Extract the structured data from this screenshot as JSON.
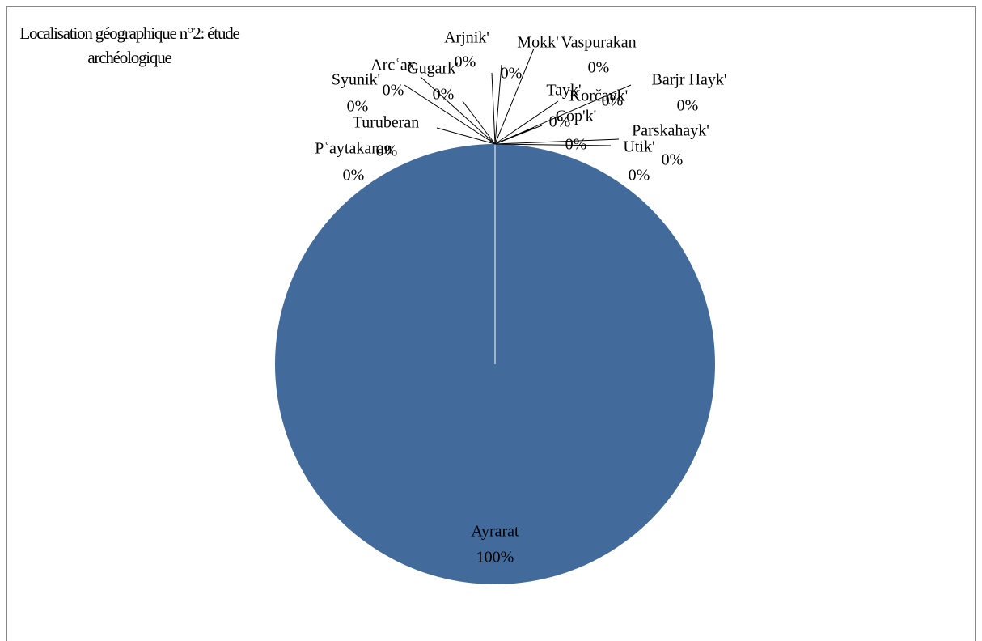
{
  "chart_data": {
    "type": "pie",
    "title": "Localisation géographique n°2: étude archéologique",
    "categories": [
      "Ayrarat",
      "Pʿaytakaran",
      "Turuberan",
      "Syunik'",
      "Arcʿax",
      "Gugark'",
      "Arjnik'",
      "Mokk'",
      "Vaspurakan",
      "Korčayk'",
      "Barjr Hayk'",
      "Tayk'",
      "Cop'k'",
      "Parskahayk'",
      "Utik'"
    ],
    "values": [
      100,
      0,
      0,
      0,
      0,
      0,
      0,
      0,
      0,
      0,
      0,
      0,
      0,
      0,
      0
    ],
    "value_labels": [
      "100%",
      "0%",
      "0%",
      "0%",
      "0%",
      "0%",
      "0%",
      "0%",
      "0%",
      "0%",
      "0%",
      "0%",
      "0%",
      "0%",
      "0%"
    ],
    "color": "#426a9b"
  }
}
